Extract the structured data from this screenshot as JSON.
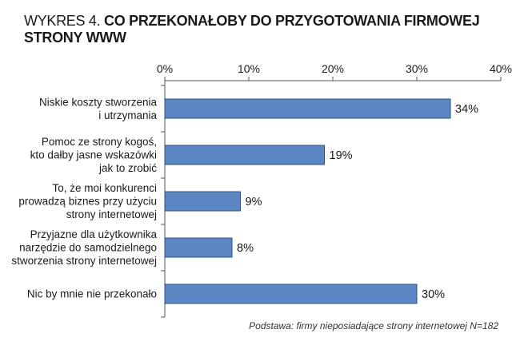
{
  "title": {
    "prefix": "WYKRES 4.",
    "text": "CO PRZEKONAŁOBY DO PRZYGOTOWANIA FIRMOWEJ STRONY WWW"
  },
  "footnote": "Podstawa: firmy nieposiadające strony internetowej N=182",
  "chart_data": {
    "type": "bar",
    "orientation": "horizontal",
    "categories": [
      [
        "Niskie koszty stworzenia",
        "i utrzymania"
      ],
      [
        "Pomoc ze strony kogoś,",
        "kto dałby jasne wskazówki",
        "jak to zrobić"
      ],
      [
        "To, że moi konkurenci",
        "prowadzą biznes przy użyciu",
        "strony internetowej"
      ],
      [
        "Przyjazne dla użytkownika",
        "narzędzie do samodzielnego",
        "stworzenia strony internetowej"
      ],
      [
        "Nic by mnie nie przekonało"
      ]
    ],
    "values": [
      34,
      19,
      9,
      8,
      30
    ],
    "value_labels": [
      "34%",
      "19%",
      "9%",
      "8%",
      "30%"
    ],
    "xlim": [
      0,
      40
    ],
    "ticks": [
      0,
      10,
      20,
      30,
      40
    ],
    "tick_labels": [
      "0%",
      "10%",
      "20%",
      "30%",
      "40%"
    ],
    "axis_position": "top",
    "grid": false,
    "bar_color": "#5b87c5",
    "bar_edge_color": "#2f4f7f"
  }
}
